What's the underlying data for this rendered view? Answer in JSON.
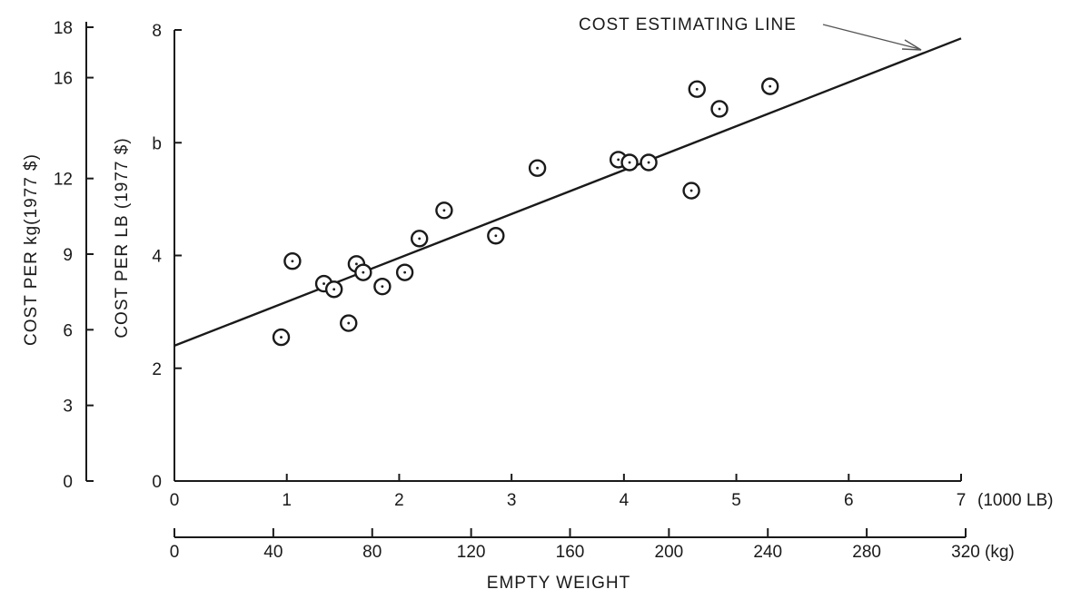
{
  "chart_data": {
    "type": "scatter",
    "title": "",
    "annotation": "COST ESTIMATING LINE",
    "xlabel": "EMPTY WEIGHT",
    "x_unit_primary": "(1000 LB)",
    "x_unit_secondary": "(kg)",
    "ylabel_primary": "COST PER LB (1977 $)",
    "ylabel_secondary": "COST PER kg(1977 $)",
    "xlim": [
      0,
      7
    ],
    "ylim": [
      0,
      8
    ],
    "x_ticks": [
      "0",
      "1",
      "2",
      "3",
      "4",
      "5",
      "6",
      "7"
    ],
    "y_ticks": [
      "0",
      "2",
      "4",
      "6",
      "8"
    ],
    "y_tick_labels_shown": [
      "0",
      "2",
      "4",
      "b",
      "8"
    ],
    "x2_ticks": [
      "0",
      "40",
      "80",
      "120",
      "160",
      "200",
      "240",
      "280",
      "320"
    ],
    "y2_ticks": [
      "0",
      "3",
      "6",
      "9",
      "12",
      "16",
      "18"
    ],
    "line": {
      "x": [
        0,
        7
      ],
      "y": [
        2.4,
        7.85
      ]
    },
    "points": [
      {
        "x": 0.95,
        "y": 2.55
      },
      {
        "x": 1.05,
        "y": 3.9
      },
      {
        "x": 1.33,
        "y": 3.5
      },
      {
        "x": 1.42,
        "y": 3.4
      },
      {
        "x": 1.55,
        "y": 2.8
      },
      {
        "x": 1.62,
        "y": 3.85
      },
      {
        "x": 1.68,
        "y": 3.7
      },
      {
        "x": 1.85,
        "y": 3.45
      },
      {
        "x": 2.05,
        "y": 3.7
      },
      {
        "x": 2.18,
        "y": 4.3
      },
      {
        "x": 2.4,
        "y": 4.8
      },
      {
        "x": 2.86,
        "y": 4.35
      },
      {
        "x": 3.23,
        "y": 5.55
      },
      {
        "x": 3.95,
        "y": 5.7
      },
      {
        "x": 4.05,
        "y": 5.65
      },
      {
        "x": 4.22,
        "y": 5.65
      },
      {
        "x": 4.6,
        "y": 5.15
      },
      {
        "x": 4.65,
        "y": 6.95
      },
      {
        "x": 4.85,
        "y": 6.6
      },
      {
        "x": 5.3,
        "y": 7.0
      }
    ],
    "grid": false,
    "legend": "none"
  }
}
